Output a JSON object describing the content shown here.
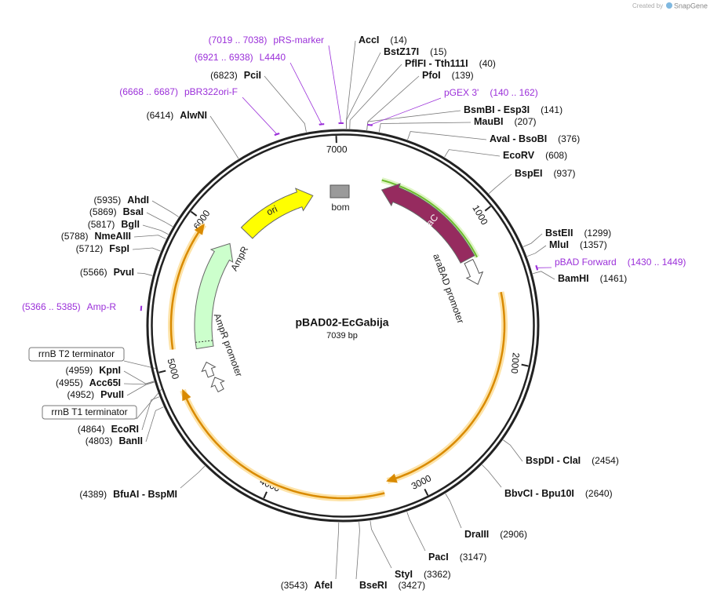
{
  "header": {
    "created_by": "Created by",
    "brand": "SnapGene"
  },
  "plasmid": {
    "name": "pBAD02-EcGabija",
    "length": "7039 bp"
  },
  "ticks": [
    "1000",
    "2000",
    "3000",
    "4000",
    "5000",
    "6000",
    "7000"
  ],
  "sites": [
    {
      "name": "AccI",
      "position": "(14)"
    },
    {
      "name": "BstZ17I",
      "position": "(15)"
    },
    {
      "name": "PflFI - Tth111I",
      "position": "(40)"
    },
    {
      "name": "PfoI",
      "position": "(139)"
    },
    {
      "name": "BsmBI - Esp3I",
      "position": "(141)"
    },
    {
      "name": "MauBI",
      "position": "(207)"
    },
    {
      "name": "AvaI - BsoBI",
      "position": "(376)"
    },
    {
      "name": "EcoRV",
      "position": "(608)"
    },
    {
      "name": "BspEI",
      "position": "(937)"
    },
    {
      "name": "BstEII",
      "position": "(1299)"
    },
    {
      "name": "MluI",
      "position": "(1357)"
    },
    {
      "name": "BamHI",
      "position": "(1461)"
    },
    {
      "name": "BspDI - ClaI",
      "position": "(2454)"
    },
    {
      "name": "BbvCI - Bpu10I",
      "position": "(2640)"
    },
    {
      "name": "DraIII",
      "position": "(2906)"
    },
    {
      "name": "PacI",
      "position": "(3147)"
    },
    {
      "name": "StyI",
      "position": "(3362)"
    },
    {
      "name": "BseRI",
      "position": "(3427)"
    },
    {
      "name": "AfeI",
      "position": "(3543)"
    },
    {
      "name": "BfuAI - BspMI",
      "position": "(4389)"
    },
    {
      "name": "BanII",
      "position": "(4803)"
    },
    {
      "name": "EcoRI",
      "position": "(4864)"
    },
    {
      "name": "PvuII",
      "position": "(4952)"
    },
    {
      "name": "Acc65I",
      "position": "(4955)"
    },
    {
      "name": "KpnI",
      "position": "(4959)"
    },
    {
      "name": "PvuI",
      "position": "(5566)"
    },
    {
      "name": "FspI",
      "position": "(5712)"
    },
    {
      "name": "NmeAIII",
      "position": "(5788)"
    },
    {
      "name": "BglI",
      "position": "(5817)"
    },
    {
      "name": "BsaI",
      "position": "(5869)"
    },
    {
      "name": "AhdI",
      "position": "(5935)"
    },
    {
      "name": "AlwNI",
      "position": "(6414)"
    },
    {
      "name": "PciI",
      "position": "(6823)"
    }
  ],
  "primers": [
    {
      "name": "pRS-marker",
      "range": "(7019 .. 7038)"
    },
    {
      "name": "L4440",
      "range": "(6921 .. 6938)"
    },
    {
      "name": "pBR322ori-F",
      "range": "(6668 .. 6687)"
    },
    {
      "name": "pGEX 3'",
      "range": "(140 .. 162)"
    },
    {
      "name": "pBAD Forward",
      "range": "(1430 .. 1449)"
    },
    {
      "name": "Amp-R",
      "range": "(5366 .. 5385)"
    }
  ],
  "terminators": [
    "rrnB T2 terminator",
    "rrnB T1 terminator"
  ],
  "features": [
    {
      "label": "ori"
    },
    {
      "label": "bom"
    },
    {
      "label": "araC"
    },
    {
      "label": "araBAD promoter"
    },
    {
      "label": "AmpR"
    },
    {
      "label": "AmpR promoter"
    }
  ]
}
